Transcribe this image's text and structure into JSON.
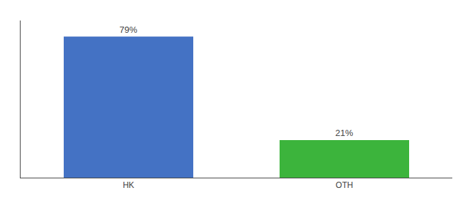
{
  "chart_data": {
    "type": "bar",
    "categories": [
      "HK",
      "OTH"
    ],
    "values": [
      79,
      21
    ],
    "value_labels": [
      "79%",
      "21%"
    ],
    "colors": [
      "#4472c4",
      "#3cb43c"
    ],
    "ylim": [
      0,
      88
    ],
    "tick_labels": "x",
    "grid": false,
    "data_labels": true
  }
}
